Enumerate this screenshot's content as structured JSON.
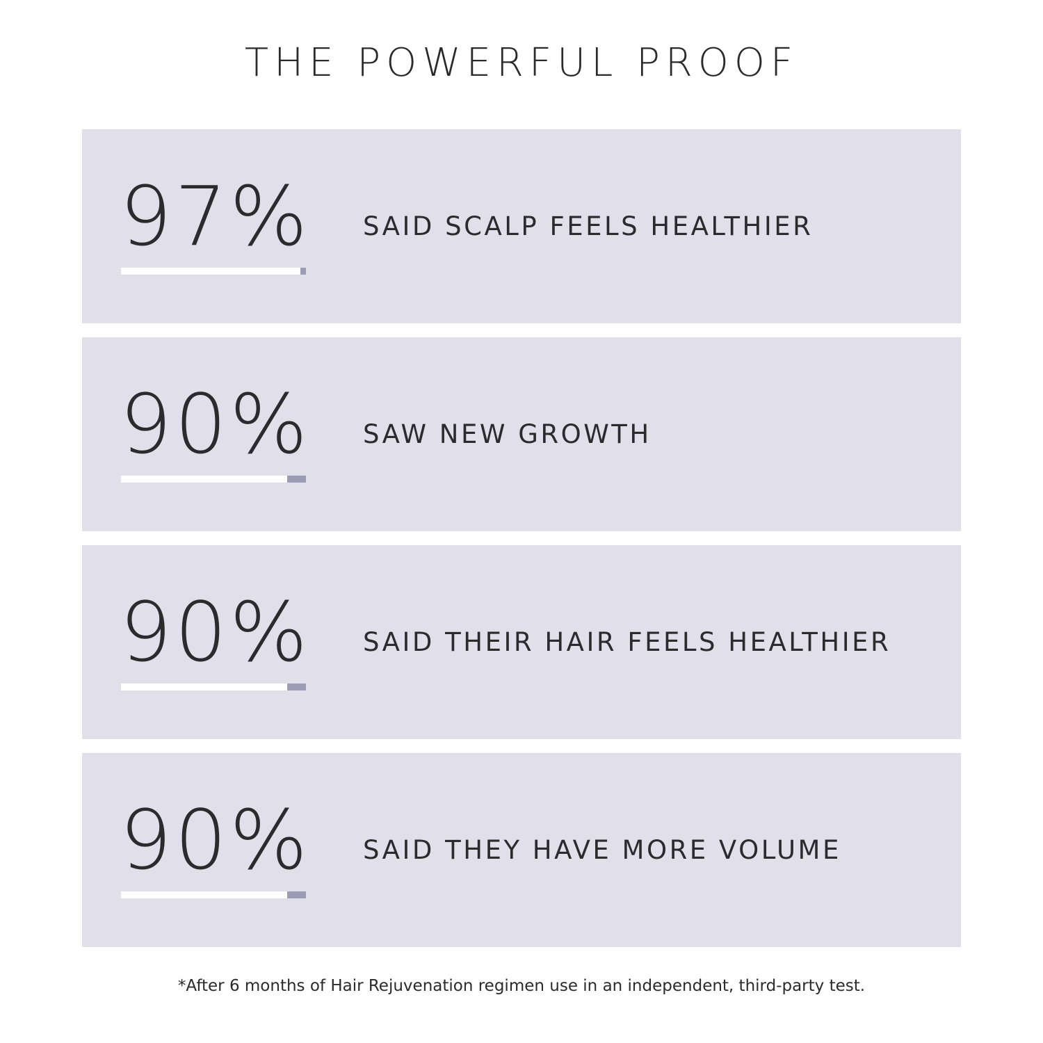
{
  "title": "THE POWERFUL PROOF",
  "stats": [
    {
      "percent_text": "97%",
      "value": 97,
      "label": "SAID SCALP FEELS HEALTHIER"
    },
    {
      "percent_text": "90%",
      "value": 90,
      "label": "SAW NEW GROWTH"
    },
    {
      "percent_text": "90%",
      "value": 90,
      "label": "SAID THEIR HAIR FEELS HEALTHIER"
    },
    {
      "percent_text": "90%",
      "value": 90,
      "label": "SAID THEY HAVE MORE VOLUME"
    }
  ],
  "footnote": "*After 6 months of Hair Rejuvenation regimen use in an independent, third-party test.",
  "colors": {
    "card_background": "#e0dfea",
    "bar_filled": "#ffffff",
    "bar_remainder": "#9d9cb5",
    "text": "#2b2b2e"
  }
}
